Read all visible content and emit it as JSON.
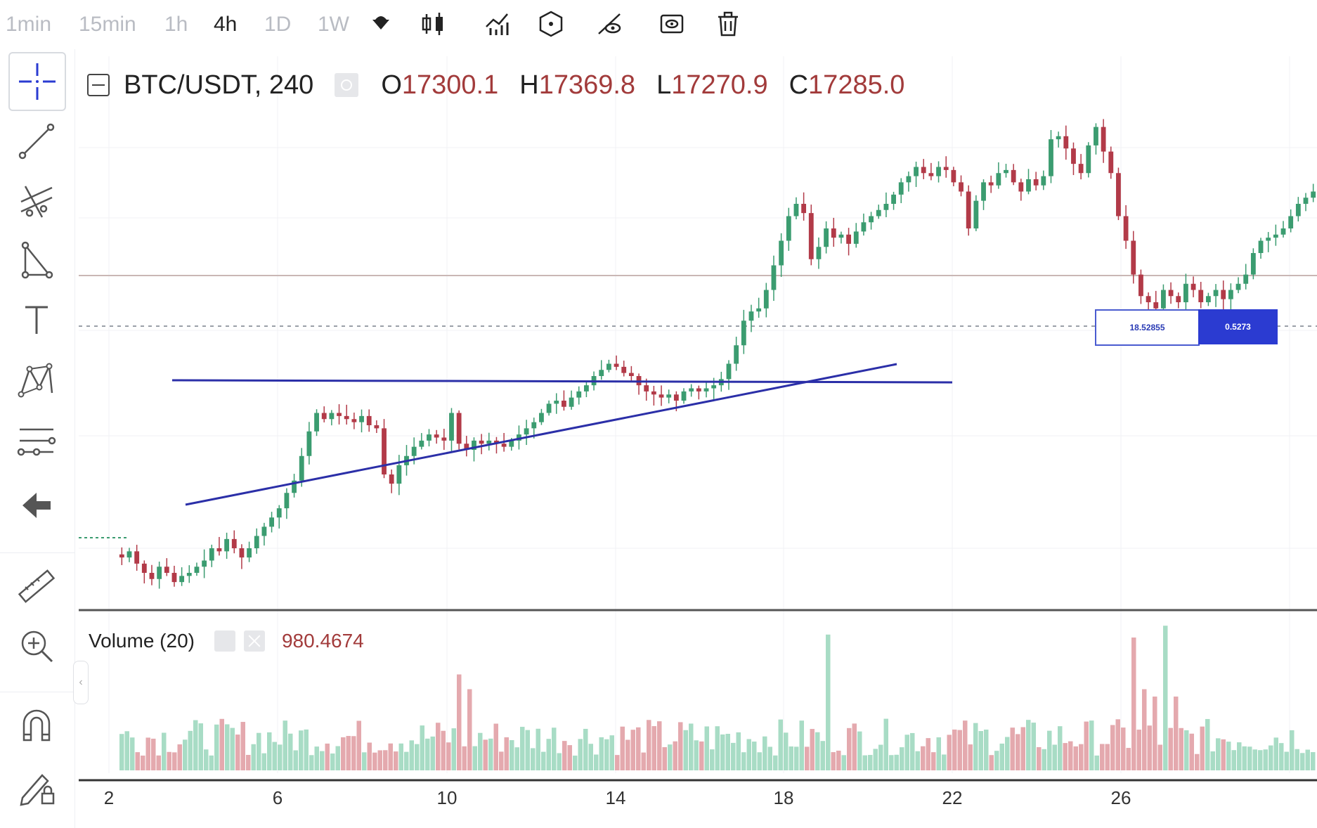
{
  "toolbar": {
    "timeframes": [
      "1min",
      "15min",
      "1h",
      "4h",
      "1D",
      "1W"
    ],
    "active_timeframe": "4h",
    "icons": [
      "candle-type-icon",
      "indicators-icon",
      "alerts-icon",
      "drawing-visibility-icon",
      "hide-icon",
      "trash-icon"
    ]
  },
  "left_tools": [
    "crosshair-icon",
    "trend-line-icon",
    "pitchfork-icon",
    "triangle-pattern-icon",
    "text-icon",
    "xabcd-pattern-icon",
    "fib-tool-icon",
    "back-arrow-icon",
    "ruler-icon",
    "zoom-in-icon",
    "magnet-icon",
    "lock-drawing-icon"
  ],
  "legend": {
    "symbol": "BTC/USDT, 240",
    "o_label": "O",
    "o_value": "17300.1",
    "h_label": "H",
    "h_value": "17369.8",
    "l_label": "L",
    "l_value": "17270.9",
    "c_label": "C",
    "c_value": "17285.0"
  },
  "volume": {
    "label": "Volume (20)",
    "value": "980.4674"
  },
  "measure": {
    "left": "18.52855",
    "right": "0.5273"
  },
  "xaxis": [
    "2",
    "6",
    "10",
    "14",
    "18",
    "22",
    "26"
  ],
  "colors": {
    "up": "#3b9c70",
    "down": "#b23a48",
    "vol_up": "#a8dcc5",
    "vol_down": "#e4a9ae",
    "trendline": "#2b2fa8",
    "accent": "#a23b3b"
  },
  "chart_data": {
    "type": "candlestick",
    "title": "BTC/USDT, 240",
    "x_ticks": [
      "2",
      "6",
      "10",
      "14",
      "18",
      "22",
      "26"
    ],
    "y_range": [
      16800,
      18400
    ],
    "price_line": 17880,
    "dotted_price": 17750,
    "candles_close": [
      16930,
      16950,
      16910,
      16880,
      16860,
      16900,
      16880,
      16850,
      16870,
      16880,
      16900,
      16920,
      16960,
      16950,
      16990,
      16960,
      16930,
      16960,
      17000,
      17030,
      17060,
      17090,
      17140,
      17180,
      17260,
      17340,
      17400,
      17380,
      17400,
      17390,
      17380,
      17370,
      17390,
      17360,
      17350,
      17200,
      17170,
      17230,
      17260,
      17290,
      17310,
      17330,
      17320,
      17310,
      17400,
      17300,
      17280,
      17310,
      17300,
      17310,
      17300,
      17290,
      17310,
      17330,
      17350,
      17370,
      17400,
      17430,
      17440,
      17420,
      17450,
      17470,
      17490,
      17520,
      17540,
      17560,
      17550,
      17530,
      17520,
      17490,
      17470,
      17460,
      17450,
      17460,
      17440,
      17470,
      17480,
      17470,
      17480,
      17490,
      17510,
      17560,
      17620,
      17700,
      17730,
      17740,
      17800,
      17880,
      17960,
      18040,
      18080,
      18050,
      17900,
      17940,
      18000,
      17970,
      17980,
      17950,
      17990,
      18020,
      18040,
      18060,
      18080,
      18110,
      18150,
      18170,
      18200,
      18180,
      18170,
      18200,
      18190,
      18150,
      18120,
      18000,
      18090,
      18150,
      18140,
      18180,
      18190,
      18150,
      18120,
      18160,
      18140,
      18170,
      18290,
      18300,
      18260,
      18210,
      18180,
      18270,
      18330,
      18250,
      18180,
      18040,
      17960,
      17850,
      17780,
      17760,
      17740,
      17800,
      17780,
      17760,
      17820,
      17800,
      17760,
      17780,
      17800,
      17770,
      17800,
      17820,
      17850,
      17920,
      17960,
      17970,
      17980,
      18000,
      18040,
      18080,
      18100,
      18120
    ]
  }
}
